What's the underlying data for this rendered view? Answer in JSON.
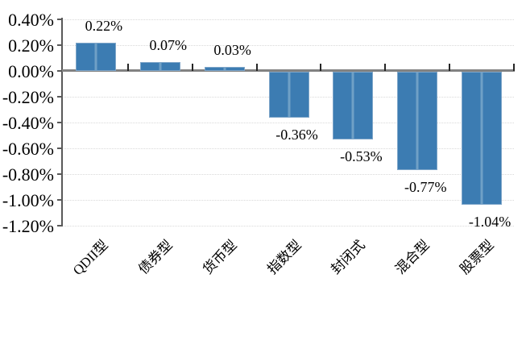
{
  "chart_data": {
    "type": "bar",
    "title": "",
    "xlabel": "",
    "ylabel": "",
    "legend": "none",
    "grid": "horizontal-dotted",
    "categories": [
      "QDII型",
      "债券型",
      "货币型",
      "指数型",
      "封闭式",
      "混合型",
      "股票型"
    ],
    "values": [
      0.22,
      0.07,
      0.03,
      -0.36,
      -0.53,
      -0.77,
      -1.04
    ],
    "labels": [
      "0.22%",
      "0.07%",
      "0.03%",
      "-0.36%",
      "-0.53%",
      "-0.77%",
      "-1.04%"
    ],
    "y_axis": {
      "min": -1.2,
      "max": 0.4,
      "step": 0.2,
      "tick_values": [
        0.4,
        0.2,
        0.0,
        -0.2,
        -0.4,
        -0.6,
        -0.8,
        -1.0,
        -1.2
      ],
      "ticks": [
        "0.40%",
        "0.20%",
        "0.00%",
        "-0.20%",
        "-0.40%",
        "-0.60%",
        "-0.80%",
        "-1.00%",
        "-1.20%"
      ]
    },
    "colors": {
      "bar_fill": "#3c7cb2",
      "bar_highlight": "#6fa0c6",
      "bar_border": "#7fa6c9",
      "axis_line": "#595959",
      "zero_line": "#828282",
      "gridline": "#d9d9d9",
      "category_tick": "#262626",
      "text": "#000000",
      "background": "#ffffff"
    }
  }
}
